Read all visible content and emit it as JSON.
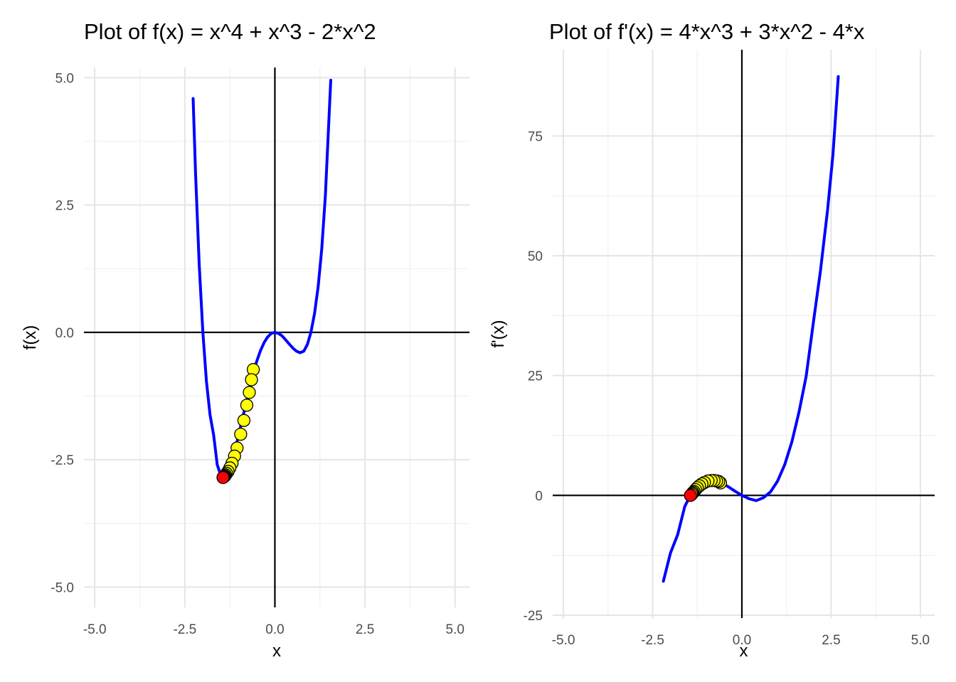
{
  "chart_data": [
    {
      "type": "line",
      "title": "Plot of f(x) = x^4 + x^3 - 2*x^2",
      "xlabel": "x",
      "ylabel": "f(x)",
      "xlim": [
        -5.3,
        5.4
      ],
      "ylim": [
        -5.4,
        5.2
      ],
      "x_ticks": [
        -5.0,
        -2.5,
        0.0,
        2.5,
        5.0
      ],
      "x_tick_labels": [
        "-5.0",
        "-2.5",
        "0.0",
        "2.5",
        "5.0"
      ],
      "y_ticks": [
        -5.0,
        -2.5,
        0.0,
        2.5,
        5.0
      ],
      "y_tick_labels": [
        "-5.0",
        "-2.5",
        "0.0",
        "2.5",
        "5.0"
      ],
      "grid": true,
      "reference_lines": {
        "x": 0,
        "y": 0
      },
      "curve": {
        "function": "x^4 + x^3 - 2*x^2",
        "x_range": [
          -2.27,
          1.55
        ],
        "color": "#0000ff",
        "points": [
          [
            -2.27,
            4.59
          ],
          [
            -2.2,
            3.09
          ],
          [
            -2.1,
            1.32
          ],
          [
            -2.0,
            0.0
          ],
          [
            -1.9,
            -0.96
          ],
          [
            -1.8,
            -1.62
          ],
          [
            -1.7,
            -2.02
          ],
          [
            -1.6,
            -2.6
          ],
          [
            -1.5,
            -2.81
          ],
          [
            -1.44,
            -2.85
          ],
          [
            -1.4,
            -2.83
          ],
          [
            -1.3,
            -2.77
          ],
          [
            -1.2,
            -2.62
          ],
          [
            -1.1,
            -2.29
          ],
          [
            -1.0,
            -2.0
          ],
          [
            -0.9,
            -1.69
          ],
          [
            -0.8,
            -1.39
          ],
          [
            -0.7,
            -1.08
          ],
          [
            -0.6,
            -0.79
          ],
          [
            -0.5,
            -0.56
          ],
          [
            -0.4,
            -0.36
          ],
          [
            -0.3,
            -0.2
          ],
          [
            -0.2,
            -0.09
          ],
          [
            -0.1,
            -0.02
          ],
          [
            0.0,
            0.0
          ],
          [
            0.1,
            -0.02
          ],
          [
            0.2,
            -0.07
          ],
          [
            0.3,
            -0.15
          ],
          [
            0.4,
            -0.23
          ],
          [
            0.5,
            -0.31
          ],
          [
            0.6,
            -0.37
          ],
          [
            0.7,
            -0.4
          ],
          [
            0.8,
            -0.37
          ],
          [
            0.9,
            -0.24
          ],
          [
            1.0,
            0.0
          ],
          [
            1.1,
            0.37
          ],
          [
            1.2,
            0.9
          ],
          [
            1.3,
            1.63
          ],
          [
            1.4,
            2.68
          ],
          [
            1.55,
            4.95
          ]
        ]
      },
      "gradient_steps": {
        "color": "#ffff00",
        "outline": "#000000",
        "points": [
          [
            -0.6,
            -0.73
          ],
          [
            -0.65,
            -0.93
          ],
          [
            -0.71,
            -1.18
          ],
          [
            -0.78,
            -1.43
          ],
          [
            -0.86,
            -1.73
          ],
          [
            -0.95,
            -2.0
          ],
          [
            -1.05,
            -2.27
          ],
          [
            -1.12,
            -2.43
          ],
          [
            -1.19,
            -2.57
          ],
          [
            -1.25,
            -2.66
          ],
          [
            -1.3,
            -2.73
          ],
          [
            -1.34,
            -2.77
          ],
          [
            -1.37,
            -2.8
          ],
          [
            -1.39,
            -2.82
          ],
          [
            -1.41,
            -2.83
          ],
          [
            -1.42,
            -2.84
          ],
          [
            -1.43,
            -2.84
          ]
        ]
      },
      "final_point": {
        "x": -1.44,
        "y": -2.85,
        "color": "#ff0000"
      }
    },
    {
      "type": "line",
      "title": "Plot of  f'(x) = 4*x^3 + 3*x^2 - 4*x",
      "xlabel": "x",
      "ylabel": "f'(x)",
      "xlim": [
        -5.3,
        5.4
      ],
      "ylim": [
        -25.6,
        93
      ],
      "x_ticks": [
        -5.0,
        -2.5,
        0.0,
        2.5,
        5.0
      ],
      "x_tick_labels": [
        "-5.0",
        "-2.5",
        "0.0",
        "2.5",
        "5.0"
      ],
      "y_ticks": [
        -25,
        0,
        25,
        50,
        75
      ],
      "y_tick_labels": [
        "-25",
        "0",
        "25",
        "50",
        "75"
      ],
      "grid": true,
      "reference_lines": {
        "x": 0,
        "y": 0
      },
      "curve": {
        "function": "4*x^3 + 3*x^2 - 4*x",
        "x_range": [
          -2.2,
          2.7
        ],
        "color": "#0000ff",
        "points": [
          [
            -2.2,
            -17.9
          ],
          [
            -2.0,
            -12.0
          ],
          [
            -1.8,
            -8.2
          ],
          [
            -1.6,
            -2.3
          ],
          [
            -1.44,
            0.0
          ],
          [
            -1.2,
            1.2
          ],
          [
            -1.0,
            3.0
          ],
          [
            -0.8,
            3.0
          ],
          [
            -0.6,
            2.6
          ],
          [
            -0.4,
            1.9
          ],
          [
            -0.2,
            0.9
          ],
          [
            0.0,
            0.0
          ],
          [
            0.2,
            -0.7
          ],
          [
            0.4,
            -1.1
          ],
          [
            0.6,
            -0.5
          ],
          [
            0.8,
            0.7
          ],
          [
            1.0,
            3.0
          ],
          [
            1.2,
            6.4
          ],
          [
            1.4,
            11.2
          ],
          [
            1.6,
            17.4
          ],
          [
            1.8,
            24.8
          ],
          [
            2.0,
            36.0
          ],
          [
            2.2,
            46.8
          ],
          [
            2.4,
            59.5
          ],
          [
            2.55,
            71.1
          ],
          [
            2.7,
            87.4
          ]
        ]
      },
      "gradient_steps": {
        "color": "#ffff00",
        "outline": "#000000",
        "points": [
          [
            -0.6,
            2.6
          ],
          [
            -0.65,
            2.9
          ],
          [
            -0.71,
            3.0
          ],
          [
            -0.78,
            3.1
          ],
          [
            -0.86,
            3.1
          ],
          [
            -0.95,
            3.0
          ],
          [
            -1.05,
            2.7
          ],
          [
            -1.12,
            2.4
          ],
          [
            -1.19,
            2.0
          ],
          [
            -1.25,
            1.6
          ],
          [
            -1.3,
            1.2
          ],
          [
            -1.34,
            0.8
          ],
          [
            -1.37,
            0.6
          ],
          [
            -1.39,
            0.4
          ],
          [
            -1.41,
            0.2
          ]
        ]
      },
      "final_point": {
        "x": -1.44,
        "y": 0.0,
        "color": "#ff0000"
      }
    }
  ]
}
